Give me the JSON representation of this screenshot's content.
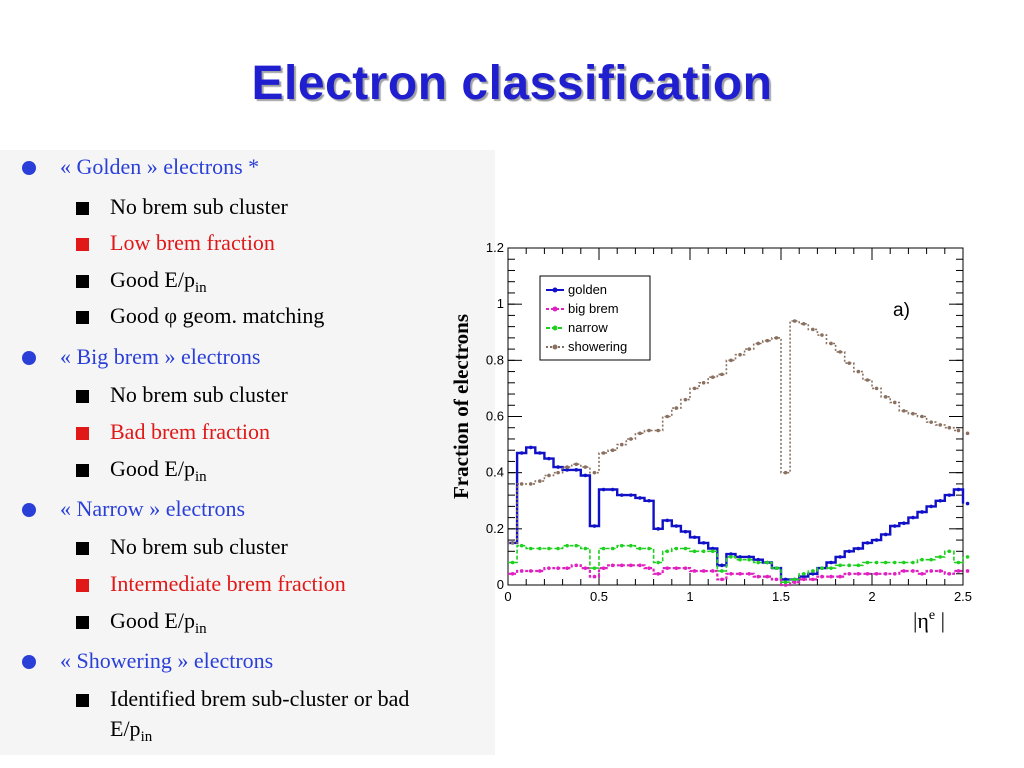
{
  "title": "Electron classification",
  "bullets": [
    {
      "text": "« Golden » electrons *",
      "items": [
        {
          "text": "No brem sub cluster",
          "color": "black"
        },
        {
          "text": "Low brem fraction",
          "color": "red"
        },
        {
          "text": "Good E/p",
          "sub": "in",
          "color": "black"
        },
        {
          "text": "Good φ  geom. matching",
          "color": "black"
        }
      ]
    },
    {
      "text": "« Big brem » electrons",
      "items": [
        {
          "text": "No brem sub cluster",
          "color": "black"
        },
        {
          "text": "Bad brem fraction",
          "color": "red"
        },
        {
          "text": "Good E/p",
          "sub": "in",
          "color": "black"
        }
      ]
    },
    {
      "text": "« Narrow » electrons",
      "items": [
        {
          "text": "No brem sub cluster",
          "color": "black"
        },
        {
          "text": "Intermediate brem fraction",
          "color": "red"
        },
        {
          "text": "Good E/p",
          "sub": "in",
          "color": "black"
        }
      ]
    },
    {
      "text": "« Showering » electrons",
      "items": [
        {
          "text": "Identified brem sub-cluster or bad",
          "color": "black"
        },
        {
          "text": "E/p",
          "sub": "in",
          "color": "black"
        }
      ]
    }
  ],
  "colors": {
    "title": "#1f1fd0",
    "level1": "#2a3fd8",
    "red": "#e01818"
  },
  "chart_data": {
    "type": "line",
    "panel_label": "a)",
    "ylabel": "Fraction of electrons",
    "xlabel_main": "|η",
    "xlabel_sup": "e",
    "xlabel_end": "|",
    "xlim": [
      0,
      2.5
    ],
    "ylim": [
      0,
      1.2
    ],
    "xticks": [
      "0",
      "0.5",
      "1",
      "1.5",
      "2",
      "2.5"
    ],
    "yticks": [
      "0",
      "0.2",
      "0.4",
      "0.6",
      "0.8",
      "1",
      "1.2"
    ],
    "legend_position": "top-left",
    "x": [
      0.0,
      0.05,
      0.1,
      0.15,
      0.2,
      0.25,
      0.3,
      0.35,
      0.4,
      0.45,
      0.5,
      0.55,
      0.6,
      0.65,
      0.7,
      0.75,
      0.8,
      0.85,
      0.9,
      0.95,
      1.0,
      1.05,
      1.1,
      1.15,
      1.2,
      1.25,
      1.3,
      1.35,
      1.4,
      1.45,
      1.5,
      1.55,
      1.6,
      1.65,
      1.7,
      1.75,
      1.8,
      1.85,
      1.9,
      1.95,
      2.0,
      2.05,
      2.1,
      2.15,
      2.2,
      2.25,
      2.3,
      2.35,
      2.4,
      2.45,
      2.5
    ],
    "series": [
      {
        "name": "golden",
        "color": "#1010c8",
        "marker": "circle",
        "values": [
          0.15,
          0.47,
          0.49,
          0.47,
          0.45,
          0.42,
          0.41,
          0.41,
          0.39,
          0.21,
          0.34,
          0.34,
          0.32,
          0.32,
          0.31,
          0.3,
          0.2,
          0.23,
          0.21,
          0.19,
          0.17,
          0.15,
          0.13,
          0.07,
          0.11,
          0.1,
          0.1,
          0.09,
          0.08,
          0.06,
          0.02,
          0.02,
          0.03,
          0.04,
          0.06,
          0.08,
          0.1,
          0.12,
          0.13,
          0.15,
          0.16,
          0.18,
          0.21,
          0.22,
          0.24,
          0.26,
          0.28,
          0.3,
          0.32,
          0.34,
          0.29
        ]
      },
      {
        "name": "big brem",
        "color": "#e020c0",
        "marker": "square",
        "values": [
          0.04,
          0.05,
          0.05,
          0.05,
          0.06,
          0.06,
          0.06,
          0.07,
          0.06,
          0.03,
          0.06,
          0.07,
          0.07,
          0.07,
          0.07,
          0.06,
          0.04,
          0.06,
          0.06,
          0.06,
          0.05,
          0.05,
          0.05,
          0.02,
          0.04,
          0.04,
          0.04,
          0.03,
          0.03,
          0.02,
          0.0,
          0.01,
          0.02,
          0.02,
          0.03,
          0.03,
          0.03,
          0.04,
          0.04,
          0.04,
          0.04,
          0.04,
          0.04,
          0.05,
          0.05,
          0.04,
          0.05,
          0.05,
          0.04,
          0.05,
          0.05
        ]
      },
      {
        "name": "narrow",
        "color": "#20d020",
        "marker": "triangle",
        "values": [
          0.08,
          0.14,
          0.13,
          0.13,
          0.13,
          0.13,
          0.14,
          0.14,
          0.13,
          0.06,
          0.13,
          0.13,
          0.14,
          0.14,
          0.13,
          0.13,
          0.08,
          0.12,
          0.13,
          0.13,
          0.12,
          0.12,
          0.12,
          0.05,
          0.1,
          0.09,
          0.09,
          0.08,
          0.08,
          0.06,
          0.01,
          0.02,
          0.04,
          0.05,
          0.06,
          0.06,
          0.07,
          0.07,
          0.07,
          0.08,
          0.08,
          0.08,
          0.08,
          0.08,
          0.08,
          0.09,
          0.09,
          0.1,
          0.12,
          0.08,
          0.1
        ]
      },
      {
        "name": "showering",
        "color": "#8a7060",
        "marker": "triangle-down",
        "values": [
          0.15,
          0.36,
          0.36,
          0.37,
          0.39,
          0.4,
          0.42,
          0.43,
          0.42,
          0.4,
          0.47,
          0.48,
          0.5,
          0.52,
          0.54,
          0.55,
          0.55,
          0.6,
          0.63,
          0.66,
          0.7,
          0.72,
          0.74,
          0.75,
          0.8,
          0.82,
          0.84,
          0.86,
          0.87,
          0.88,
          0.4,
          0.94,
          0.93,
          0.91,
          0.89,
          0.86,
          0.83,
          0.79,
          0.76,
          0.73,
          0.7,
          0.67,
          0.65,
          0.62,
          0.61,
          0.6,
          0.58,
          0.57,
          0.56,
          0.55,
          0.54
        ]
      }
    ]
  }
}
